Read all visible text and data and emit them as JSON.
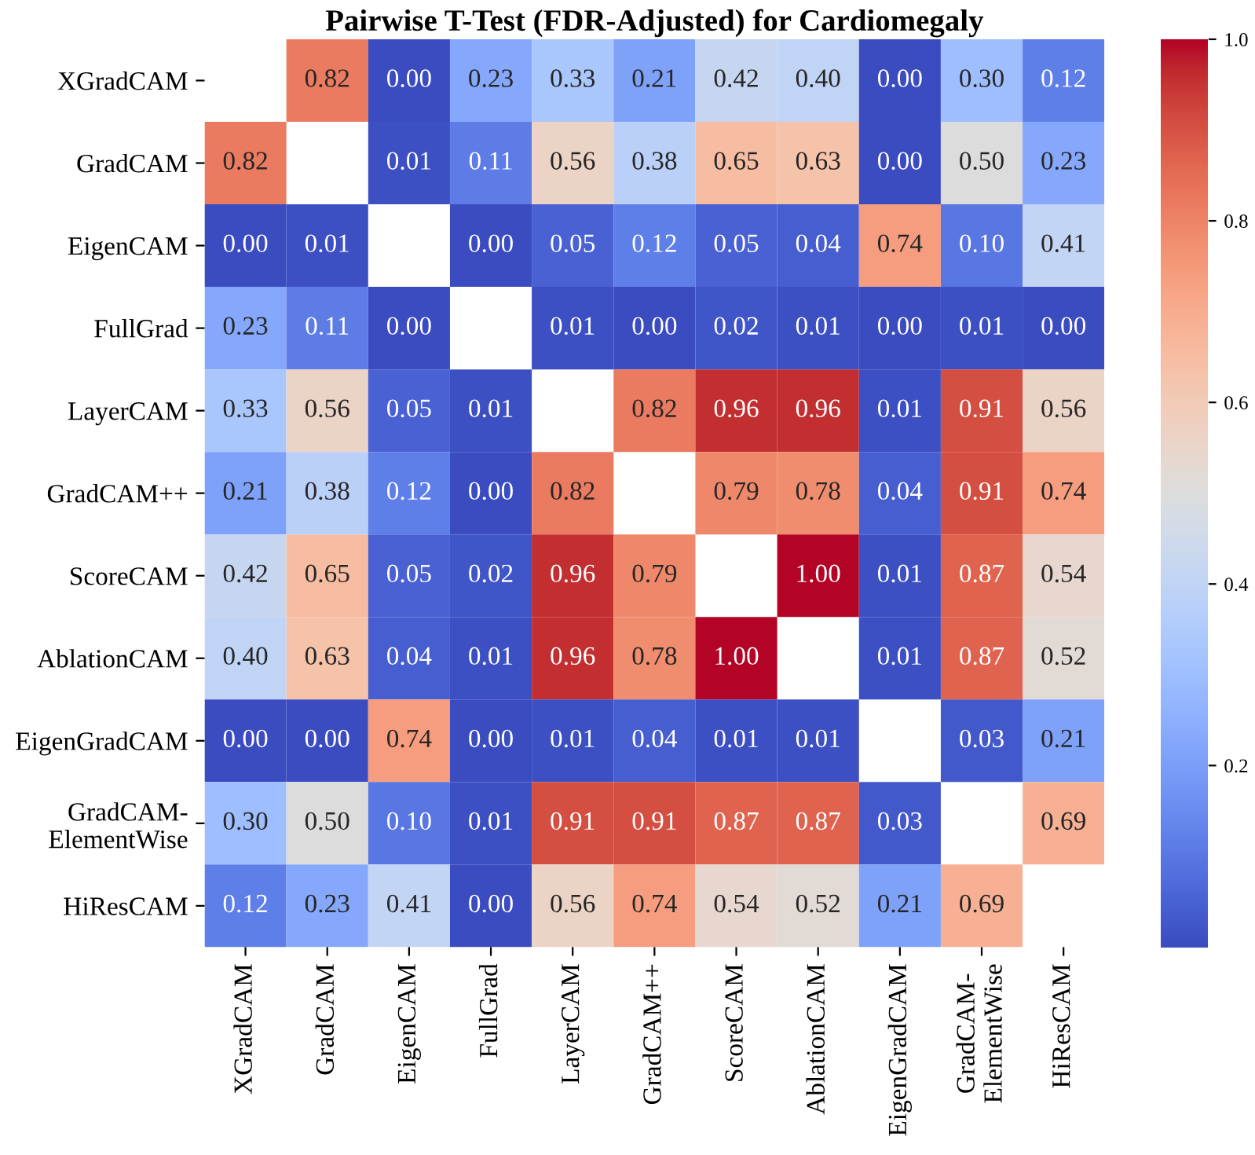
{
  "chart_data": {
    "type": "heatmap",
    "title": "Pairwise T-Test (FDR-Adjusted) for Cardiomegaly",
    "categories": [
      "XGradCAM",
      "GradCAM",
      "EigenCAM",
      "FullGrad",
      "LayerCAM",
      "GradCAM++",
      "ScoreCAM",
      "AblationCAM",
      "EigenGradCAM",
      "GradCAM-\nElementWise",
      "HiResCAM"
    ],
    "y_categories": [
      "XGradCAM",
      "GradCAM",
      "EigenCAM",
      "FullGrad",
      "LayerCAM",
      "GradCAM++",
      "ScoreCAM",
      "AblationCAM",
      "EigenGradCAM",
      "GradCAM-\nElementWise",
      "HiResCAM"
    ],
    "cells": [
      [
        null,
        0.82,
        0.0,
        0.23,
        0.33,
        0.21,
        0.42,
        0.4,
        0.0,
        0.3,
        0.12
      ],
      [
        0.82,
        null,
        0.01,
        0.11,
        0.56,
        0.38,
        0.65,
        0.63,
        0.0,
        0.5,
        0.23
      ],
      [
        0.0,
        0.01,
        null,
        0.0,
        0.05,
        0.12,
        0.05,
        0.04,
        0.74,
        0.1,
        0.41
      ],
      [
        0.23,
        0.11,
        0.0,
        null,
        0.01,
        0.0,
        0.02,
        0.01,
        0.0,
        0.01,
        0.0
      ],
      [
        0.33,
        0.56,
        0.05,
        0.01,
        null,
        0.82,
        0.96,
        0.96,
        0.01,
        0.91,
        0.56
      ],
      [
        0.21,
        0.38,
        0.12,
        0.0,
        0.82,
        null,
        0.79,
        0.78,
        0.04,
        0.91,
        0.74
      ],
      [
        0.42,
        0.65,
        0.05,
        0.02,
        0.96,
        0.79,
        null,
        1.0,
        0.01,
        0.87,
        0.54
      ],
      [
        0.4,
        0.63,
        0.04,
        0.01,
        0.96,
        0.78,
        1.0,
        null,
        0.01,
        0.87,
        0.52
      ],
      [
        0.0,
        0.0,
        0.74,
        0.0,
        0.01,
        0.04,
        0.01,
        0.01,
        null,
        0.03,
        0.21
      ],
      [
        0.3,
        0.5,
        0.1,
        0.01,
        0.91,
        0.91,
        0.87,
        0.87,
        0.03,
        null,
        0.69
      ],
      [
        0.12,
        0.23,
        0.41,
        0.0,
        0.56,
        0.74,
        0.54,
        0.52,
        0.21,
        0.69,
        null
      ]
    ],
    "cell_labels": [
      [
        null,
        "0.82",
        "0.00",
        "0.23",
        "0.33",
        "0.21",
        "0.42",
        "0.40",
        "0.00",
        "0.30",
        "0.12"
      ],
      [
        "0.82",
        null,
        "0.01",
        "0.11",
        "0.56",
        "0.38",
        "0.65",
        "0.63",
        "0.00",
        "0.50",
        "0.23"
      ],
      [
        "0.00",
        "0.01",
        null,
        "0.00",
        "0.05",
        "0.12",
        "0.05",
        "0.04",
        "0.74",
        "0.10",
        "0.41"
      ],
      [
        "0.23",
        "0.11",
        "0.00",
        null,
        "0.01",
        "0.00",
        "0.02",
        "0.01",
        "0.00",
        "0.01",
        "0.00"
      ],
      [
        "0.33",
        "0.56",
        "0.05",
        "0.01",
        null,
        "0.82",
        "0.96",
        "0.96",
        "0.01",
        "0.91",
        "0.56"
      ],
      [
        "0.21",
        "0.38",
        "0.12",
        "0.00",
        "0.82",
        null,
        "0.79",
        "0.78",
        "0.04",
        "0.91",
        "0.74"
      ],
      [
        "0.42",
        "0.65",
        "0.05",
        "0.02",
        "0.96",
        "0.79",
        null,
        "1.00",
        "0.01",
        "0.87",
        "0.54"
      ],
      [
        "0.40",
        "0.63",
        "0.04",
        "0.01",
        "0.96",
        "0.78",
        "1.00",
        null,
        "0.01",
        "0.87",
        "0.52"
      ],
      [
        "0.00",
        "0.00",
        "0.74",
        "0.00",
        "0.01",
        "0.04",
        "0.01",
        "0.01",
        null,
        "0.03",
        "0.21"
      ],
      [
        "0.30",
        "0.50",
        "0.10",
        "0.01",
        "0.91",
        "0.91",
        "0.87",
        "0.87",
        "0.03",
        null,
        "0.69"
      ],
      [
        "0.12",
        "0.23",
        "0.41",
        "0.00",
        "0.56",
        "0.74",
        "0.54",
        "0.52",
        "0.21",
        "0.69",
        null
      ]
    ],
    "clim": [
      0,
      1
    ],
    "cticks": [
      0.2,
      0.4,
      0.6,
      0.8,
      {
        "value": 1,
        "label": "1.0"
      }
    ],
    "data_labels": true
  }
}
